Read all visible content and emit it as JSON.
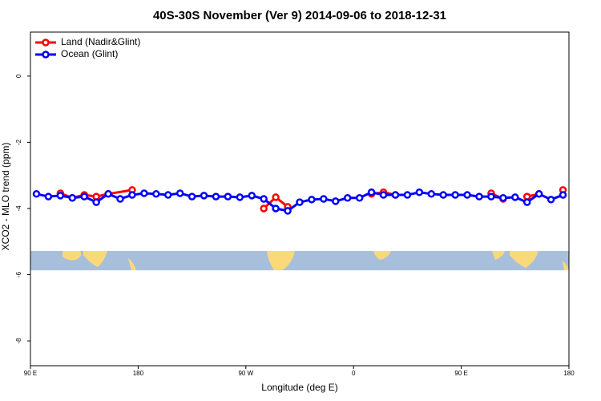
{
  "chart_data": {
    "type": "line",
    "title": "40S-30S November (Ver 9)   2014-09-06 to 2018-12-31",
    "x_label": "Longitude (deg E)",
    "y_label": "XCO2 - MLO trend (ppm)",
    "xlim": [
      90,
      540
    ],
    "xticks": [
      {
        "value": 90,
        "label": "90 E"
      },
      180,
      {
        "value": 270,
        "label": "90 W"
      },
      {
        "value": 360,
        "label": "0"
      },
      {
        "value": 450,
        "label": "90 E"
      },
      {
        "value": 540,
        "label": "180"
      }
    ],
    "ylim": [
      -8.75,
      1.33
    ],
    "yticks": [
      0,
      -2,
      -4,
      -6,
      -8
    ],
    "legend": "top-left",
    "series": [
      {
        "name": "Land (Nadir&Glint)",
        "color": "#ff0000",
        "x": [
          115,
          125,
          135,
          145,
          155,
          175,
          185,
          285,
          295,
          305,
          315,
          375,
          385,
          395,
          405,
          475,
          485,
          495,
          505,
          515,
          525,
          535
        ],
        "values": [
          -3.54,
          -3.68,
          -3.59,
          -3.64,
          -3.56,
          -3.44,
          null,
          -4.0,
          -3.66,
          -3.95,
          null,
          -3.56,
          -3.51,
          -3.59,
          null,
          -3.54,
          -3.71,
          null,
          -3.64,
          -3.56,
          null,
          -3.44
        ]
      },
      {
        "name": "Ocean (Glint)",
        "color": "#0000ff",
        "x": [
          95,
          105,
          115,
          125,
          135,
          145,
          155,
          165,
          175,
          185,
          195,
          205,
          215,
          225,
          235,
          245,
          255,
          265,
          275,
          285,
          295,
          305,
          315,
          325,
          335,
          345,
          355,
          365,
          375,
          385,
          395,
          405,
          415,
          425,
          435,
          445,
          455,
          465,
          475,
          485,
          495,
          505,
          515,
          525,
          535
        ],
        "values": [
          -3.56,
          -3.64,
          -3.61,
          -3.68,
          -3.64,
          -3.81,
          -3.56,
          -3.71,
          -3.59,
          -3.54,
          -3.56,
          -3.59,
          -3.54,
          -3.64,
          -3.61,
          -3.64,
          -3.64,
          -3.66,
          -3.61,
          -3.71,
          -4.0,
          -4.07,
          -3.81,
          -3.73,
          -3.71,
          -3.78,
          -3.68,
          -3.68,
          -3.51,
          -3.59,
          -3.59,
          -3.59,
          -3.51,
          -3.56,
          -3.59,
          -3.59,
          -3.59,
          -3.64,
          -3.64,
          -3.68,
          -3.66,
          -3.81,
          -3.56,
          -3.73,
          -3.59
        ]
      }
    ]
  }
}
